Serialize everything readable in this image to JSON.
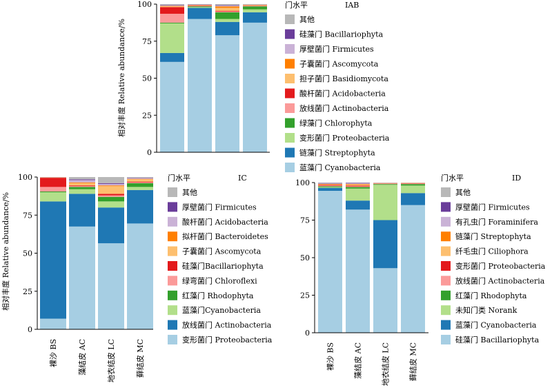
{
  "chart_data": [
    {
      "id": "IAB",
      "type": "bar",
      "stacked": true,
      "title": "IAB",
      "legend_title": "门水平",
      "ylabel": "相对丰度 Relative abundance/%",
      "ylim": [
        0,
        100
      ],
      "yticks": [
        0,
        25,
        50,
        75,
        100
      ],
      "categories": [
        "",
        "",
        "",
        ""
      ],
      "series": [
        {
          "name": "蓝藻门 Cyanobacteria",
          "color": "#a6cee3",
          "values": [
            61,
            90,
            79,
            87.5
          ]
        },
        {
          "name": "链藻门 Streptophyta",
          "color": "#1f78b4",
          "values": [
            6,
            7.5,
            9,
            7
          ]
        },
        {
          "name": "变形菌门 Proteobacteria",
          "color": "#b2df8a",
          "values": [
            20,
            0.5,
            2,
            2
          ]
        },
        {
          "name": "绿藻门 Chlorophyta",
          "color": "#33a02c",
          "values": [
            0.5,
            0.5,
            4.5,
            2
          ]
        },
        {
          "name": "放线菌门 Actinobacteria",
          "color": "#fb9a99",
          "values": [
            6,
            0.3,
            0.5,
            0.3
          ]
        },
        {
          "name": "酸杆菌门 Acidobacteria",
          "color": "#e31a1c",
          "values": [
            4.5,
            0.3,
            0.5,
            0.2
          ]
        },
        {
          "name": "担子菌门 Basidiomycota",
          "color": "#fdbf6f",
          "values": [
            0.5,
            0.3,
            2,
            0.3
          ]
        },
        {
          "name": "子囊菌门 Ascomycota",
          "color": "#ff7f00",
          "values": [
            0.3,
            0.2,
            1,
            0.2
          ]
        },
        {
          "name": "厚壁菌门 Firmicutes",
          "color": "#cab2d6",
          "values": [
            0.3,
            0.2,
            0.5,
            0.2
          ]
        },
        {
          "name": "硅藻门 Bacillariophyta",
          "color": "#6a3d9a",
          "values": [
            0.3,
            0.2,
            0.3,
            0.1
          ]
        },
        {
          "name": "其他",
          "color": "#b8b8b8",
          "values": [
            0.8,
            0.3,
            0.7,
            0.2
          ]
        }
      ]
    },
    {
      "id": "IC",
      "type": "bar",
      "stacked": true,
      "title": "IC",
      "legend_title": "门水平",
      "ylabel": "相对丰度 Relative abundance/%",
      "ylim": [
        0,
        100
      ],
      "yticks": [
        0,
        25,
        50,
        75,
        100
      ],
      "categories": [
        "裸沙 BS",
        "藻结皮 AC",
        "地衣结皮 LC",
        "藓结皮 MC"
      ],
      "series": [
        {
          "name": "变形菌门 Proteobacteria",
          "color": "#a6cee3",
          "values": [
            7,
            67.5,
            56.5,
            69.5
          ]
        },
        {
          "name": "放线菌门 Actinobacteria",
          "color": "#1f78b4",
          "values": [
            77,
            21.5,
            23.5,
            22
          ]
        },
        {
          "name": "蓝藻门Cyanobacteria",
          "color": "#b2df8a",
          "values": [
            6,
            3,
            4,
            2
          ]
        },
        {
          "name": "红藻门 Rhodophyta",
          "color": "#33a02c",
          "values": [
            0.5,
            1.5,
            3,
            2.5
          ]
        },
        {
          "name": "绿弯菌门 Chloroflexi",
          "color": "#fb9a99",
          "values": [
            3,
            0.5,
            1,
            0.5
          ]
        },
        {
          "name": "硅藻门Bacillariophyta",
          "color": "#e31a1c",
          "values": [
            6,
            0.5,
            1,
            0.5
          ]
        },
        {
          "name": "子囊菌门 Ascomycota",
          "color": "#fdbf6f",
          "values": [
            0.2,
            1.5,
            5,
            1.5
          ]
        },
        {
          "name": "拟杆菌门 Bacteroidetes",
          "color": "#ff7f00",
          "values": [
            0.1,
            0.5,
            0.5,
            0.3
          ]
        },
        {
          "name": "酸杆菌门 Acidobacteria",
          "color": "#cab2d6",
          "values": [
            0.1,
            1.5,
            1,
            0.5
          ]
        },
        {
          "name": "厚壁菌门 Firmicutes",
          "color": "#6a3d9a",
          "values": [
            0.1,
            0.5,
            0.5,
            0.2
          ]
        },
        {
          "name": "其他",
          "color": "#b8b8b8",
          "values": [
            0,
            1.5,
            4,
            0.5
          ]
        }
      ]
    },
    {
      "id": "ID",
      "type": "bar",
      "stacked": true,
      "title": "ID",
      "legend_title": "门水平",
      "ylabel": "",
      "ylim": [
        0,
        100
      ],
      "yticks": [
        0,
        25,
        50,
        75,
        100
      ],
      "categories": [
        "裸沙 BS",
        "藻结皮 AC",
        "地衣结皮 LC",
        "藓结皮 MC"
      ],
      "series": [
        {
          "name": "硅藻门 Bacillariophyta",
          "color": "#a6cee3",
          "values": [
            94.5,
            82,
            43,
            85
          ]
        },
        {
          "name": "蓝藻门 Cyanobacteria",
          "color": "#1f78b4",
          "values": [
            2,
            6,
            32,
            8
          ]
        },
        {
          "name": "未知门类 Norank",
          "color": "#b2df8a",
          "values": [
            0.5,
            8,
            23.5,
            5
          ]
        },
        {
          "name": "红藻门 Rhodophyta",
          "color": "#33a02c",
          "values": [
            0.5,
            1,
            0.5,
            1
          ]
        },
        {
          "name": "放线菌门 Actinobacteria",
          "color": "#fb9a99",
          "values": [
            0.5,
            0.5,
            0.2,
            0.3
          ]
        },
        {
          "name": "变形菌门 Proteobacteria",
          "color": "#e31a1c",
          "values": [
            0.5,
            0.5,
            0.2,
            0.2
          ]
        },
        {
          "name": "纤毛虫门 Ciliophora",
          "color": "#fdbf6f",
          "values": [
            0.3,
            0.5,
            0.2,
            0.2
          ]
        },
        {
          "name": "链藻门 Streptophyta",
          "color": "#ff7f00",
          "values": [
            0.3,
            0.5,
            0.1,
            0.1
          ]
        },
        {
          "name": "有孔虫门 Foraminifera",
          "color": "#cab2d6",
          "values": [
            0.3,
            0.5,
            0.1,
            0.1
          ]
        },
        {
          "name": "厚壁菌门 Firmicutes",
          "color": "#6a3d9a",
          "values": [
            0.3,
            0.3,
            0.1,
            0.05
          ]
        },
        {
          "name": "其他",
          "color": "#b8b8b8",
          "values": [
            0.3,
            0.2,
            0.1,
            0.05
          ]
        }
      ]
    }
  ]
}
